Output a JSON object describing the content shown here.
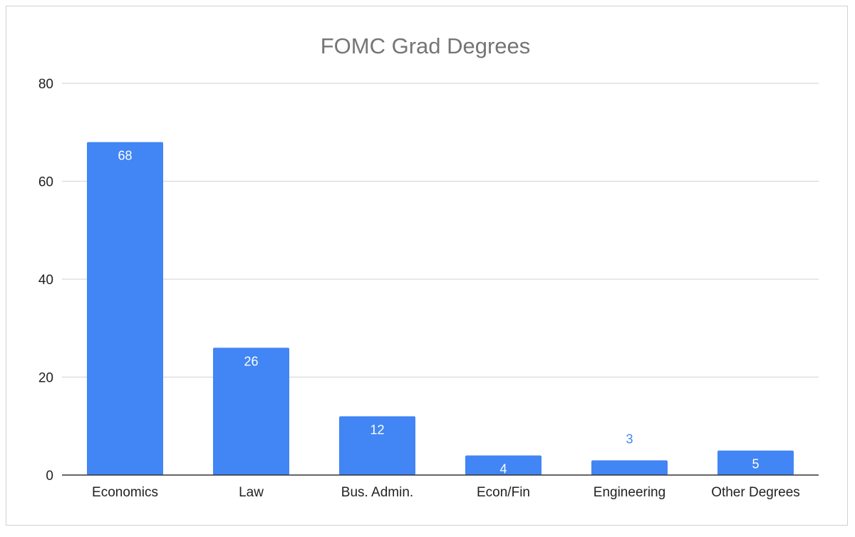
{
  "chart_data": {
    "type": "bar",
    "title": "FOMC Grad Degrees",
    "categories": [
      "Economics",
      "Law",
      "Bus. Admin.",
      "Econ/Fin",
      "Engineering",
      "Other Degrees"
    ],
    "values": [
      68,
      26,
      12,
      4,
      3,
      5
    ],
    "data_labels": [
      "68",
      "26",
      "12",
      "4",
      "3",
      "5"
    ],
    "ylim": [
      0,
      80
    ],
    "y_ticks": [
      0,
      20,
      40,
      60,
      80
    ],
    "xlabel": "",
    "ylabel": "",
    "grid": true,
    "legend": "none",
    "bar_color": "#4285f4"
  }
}
